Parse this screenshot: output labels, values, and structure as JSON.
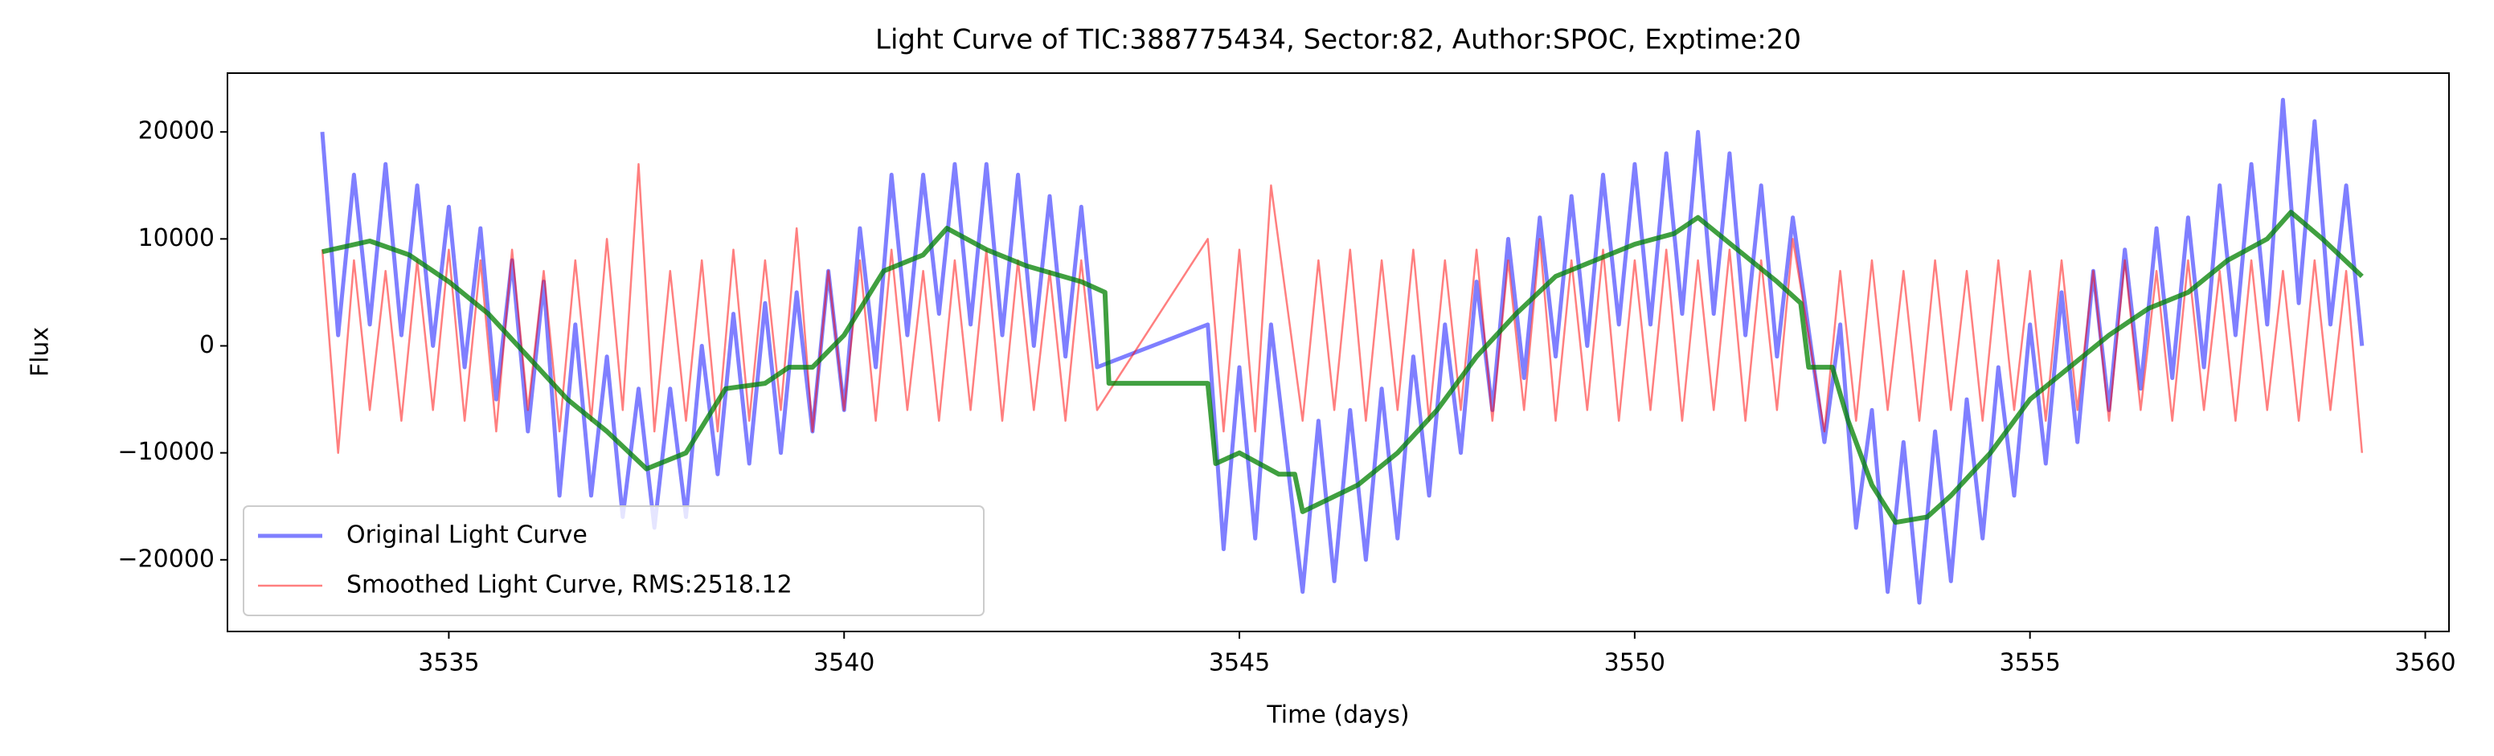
{
  "chart_data": {
    "type": "line",
    "title": "Light Curve of TIC:388775434, Sector:82, Author:SPOC, Exptime:20",
    "x_label": "Time (days)",
    "y_label": "Flux",
    "xlim": [
      3532.2,
      3560.3
    ],
    "xticks": [
      3535,
      3540,
      3545,
      3550,
      3555,
      3560
    ],
    "ylim": [
      -26700,
      25500
    ],
    "yticks": [
      {
        "value": -20000,
        "label": "−20000"
      },
      {
        "value": -10000,
        "label": "−10000"
      },
      0,
      10000,
      20000
    ],
    "legend": "lower left",
    "series": [
      {
        "name": "Original Light Curve",
        "color": "#0000ff",
        "opacity": 0.5,
        "width": 5,
        "x": [
          3533.4,
          3533.6,
          3533.8,
          3534,
          3534.2,
          3534.4,
          3534.6,
          3534.8,
          3535,
          3535.2,
          3535.4,
          3535.6,
          3535.8,
          3536,
          3536.2,
          3536.4,
          3536.6,
          3536.8,
          3537,
          3537.2,
          3537.4,
          3537.6,
          3537.8,
          3538,
          3538.2,
          3538.4,
          3538.6,
          3538.8,
          3539,
          3539.2,
          3539.4,
          3539.6,
          3539.8,
          3540,
          3540.2,
          3540.4,
          3540.6,
          3540.8,
          3541,
          3541.2,
          3541.4,
          3541.6,
          3541.8,
          3542,
          3542.2,
          3542.4,
          3542.6,
          3542.8,
          3543,
          3543.2,
          3544.6,
          3544.8,
          3545,
          3545.2,
          3545.4,
          3545.8,
          3546,
          3546.2,
          3546.4,
          3546.6,
          3546.8,
          3547,
          3547.2,
          3547.4,
          3547.6,
          3547.8,
          3548,
          3548.2,
          3548.4,
          3548.6,
          3548.8,
          3549,
          3549.2,
          3549.4,
          3549.6,
          3549.8,
          3550,
          3550.2,
          3550.4,
          3550.6,
          3550.8,
          3551,
          3551.2,
          3551.4,
          3551.6,
          3551.8,
          3552,
          3552.4,
          3552.6,
          3552.8,
          3553,
          3553.2,
          3553.4,
          3553.6,
          3553.8,
          3554,
          3554.2,
          3554.4,
          3554.6,
          3554.8,
          3555,
          3555.2,
          3555.4,
          3555.6,
          3555.8,
          3556,
          3556.2,
          3556.4,
          3556.6,
          3556.8,
          3557,
          3557.2,
          3557.4,
          3557.6,
          3557.8,
          3558,
          3558.2,
          3558.4,
          3558.6,
          3558.8,
          3559,
          3559.2
        ],
        "values": [
          20000,
          1000,
          16000,
          2000,
          17000,
          1000,
          15000,
          0,
          13000,
          -2000,
          11000,
          -5000,
          8000,
          -8000,
          6000,
          -14000,
          2000,
          -14000,
          -1000,
          -16000,
          -4000,
          -17000,
          -4000,
          -16000,
          0,
          -12000,
          3000,
          -11000,
          4000,
          -10000,
          5000,
          -8000,
          7000,
          -6000,
          11000,
          -2000,
          16000,
          1000,
          16000,
          3000,
          17000,
          2000,
          17000,
          1000,
          16000,
          0,
          14000,
          -1000,
          13000,
          -2000,
          2000,
          -19000,
          -2000,
          -18000,
          2000,
          -23000,
          -7000,
          -22000,
          -6000,
          -20000,
          -4000,
          -18000,
          -1000,
          -14000,
          2000,
          -10000,
          6000,
          -6000,
          10000,
          -3000,
          12000,
          -1000,
          14000,
          0,
          16000,
          2000,
          17000,
          2000,
          18000,
          3000,
          20000,
          3000,
          18000,
          1000,
          15000,
          -1000,
          12000,
          -9000,
          2000,
          -17000,
          -6000,
          -23000,
          -9000,
          -24000,
          -8000,
          -22000,
          -5000,
          -18000,
          -2000,
          -14000,
          2000,
          -11000,
          5000,
          -9000,
          7000,
          -6000,
          9000,
          -4000,
          11000,
          -3000,
          12000,
          -2000,
          15000,
          1000,
          17000,
          2000,
          23000,
          4000,
          21000,
          2000,
          15000,
          0
        ]
      },
      {
        "name": "Smoothed Light Curve, RMS:2518.12",
        "color": "#ff0000",
        "opacity": 0.5,
        "width": 2.5,
        "x": [
          3533.4,
          3533.6,
          3533.8,
          3534,
          3534.2,
          3534.4,
          3534.6,
          3534.8,
          3535,
          3535.2,
          3535.4,
          3535.6,
          3535.8,
          3536,
          3536.2,
          3536.4,
          3536.6,
          3536.8,
          3537,
          3537.2,
          3537.4,
          3537.6,
          3537.8,
          3538,
          3538.2,
          3538.4,
          3538.6,
          3538.8,
          3539,
          3539.2,
          3539.4,
          3539.6,
          3539.8,
          3540,
          3540.2,
          3540.4,
          3540.6,
          3540.8,
          3541,
          3541.2,
          3541.4,
          3541.6,
          3541.8,
          3542,
          3542.2,
          3542.4,
          3542.6,
          3542.8,
          3543,
          3543.2,
          3544.6,
          3544.8,
          3545,
          3545.2,
          3545.4,
          3545.8,
          3546,
          3546.2,
          3546.4,
          3546.6,
          3546.8,
          3547,
          3547.2,
          3547.4,
          3547.6,
          3547.8,
          3548,
          3548.2,
          3548.4,
          3548.6,
          3548.8,
          3549,
          3549.2,
          3549.4,
          3549.6,
          3549.8,
          3550,
          3550.2,
          3550.4,
          3550.6,
          3550.8,
          3551,
          3551.2,
          3551.4,
          3551.6,
          3551.8,
          3552,
          3552.4,
          3552.6,
          3552.8,
          3553,
          3553.2,
          3553.4,
          3553.6,
          3553.8,
          3554,
          3554.2,
          3554.4,
          3554.6,
          3554.8,
          3555,
          3555.2,
          3555.4,
          3555.6,
          3555.8,
          3556,
          3556.2,
          3556.4,
          3556.6,
          3556.8,
          3557,
          3557.2,
          3557.4,
          3557.6,
          3557.8,
          3558,
          3558.2,
          3558.4,
          3558.6,
          3558.8,
          3559,
          3559.2
        ],
        "values": [
          9000,
          -10000,
          8000,
          -6000,
          7000,
          -7000,
          8000,
          -6000,
          9000,
          -7000,
          8000,
          -8000,
          9000,
          -6000,
          7000,
          -8000,
          8000,
          -7000,
          10000,
          -6000,
          17000,
          -8000,
          7000,
          -7000,
          8000,
          -8000,
          9000,
          -7000,
          8000,
          -6000,
          11000,
          -8000,
          7000,
          -6000,
          8000,
          -7000,
          9000,
          -6000,
          7000,
          -7000,
          8000,
          -6000,
          9000,
          -7000,
          8000,
          -6000,
          7000,
          -7000,
          8000,
          -6000,
          10000,
          -8000,
          9000,
          -8000,
          15000,
          -7000,
          8000,
          -6000,
          9000,
          -7000,
          8000,
          -6000,
          9000,
          -7000,
          8000,
          -6000,
          9000,
          -7000,
          8000,
          -6000,
          10000,
          -7000,
          8000,
          -6000,
          9000,
          -7000,
          8000,
          -6000,
          9000,
          -7000,
          8000,
          -6000,
          9000,
          -7000,
          8000,
          -6000,
          10000,
          -8000,
          7000,
          -7000,
          8000,
          -6000,
          7000,
          -7000,
          8000,
          -6000,
          7000,
          -7000,
          8000,
          -6000,
          7000,
          -7000,
          8000,
          -6000,
          7000,
          -7000,
          8000,
          -6000,
          7000,
          -7000,
          8000,
          -6000,
          7000,
          -7000,
          8000,
          -6000,
          7000,
          -7000,
          8000,
          -6000,
          7000,
          -10000
        ]
      },
      {
        "color": "#008000",
        "opacity": 0.75,
        "width": 6,
        "x": [
          3533.4,
          3534,
          3534.5,
          3535,
          3535.5,
          3536,
          3536.5,
          3537,
          3537.5,
          3538,
          3538.5,
          3539,
          3539.3,
          3539.6,
          3540,
          3540.5,
          3541,
          3541.3,
          3541.8,
          3542.3,
          3543,
          3543.3,
          3543.35,
          3544.6,
          3544.7,
          3545,
          3545.5,
          3545.7,
          3545.8,
          3546.5,
          3547,
          3547.5,
          3548,
          3548.5,
          3549,
          3549.5,
          3550,
          3550.5,
          3550.8,
          3551.3,
          3551.8,
          3552.1,
          3552.2,
          3552.5,
          3552.7,
          3553,
          3553.3,
          3553.7,
          3554,
          3554.5,
          3555,
          3555.5,
          3556,
          3556.5,
          3557,
          3557.5,
          3558,
          3558.3,
          3558.7,
          3559.2
        ],
        "values": [
          8800,
          9800,
          8500,
          6000,
          3000,
          -1000,
          -5000,
          -8000,
          -11500,
          -10000,
          -4000,
          -3500,
          -2000,
          -2000,
          1000,
          7000,
          8500,
          11000,
          9000,
          7500,
          6000,
          5000,
          -3500,
          -3500,
          -11000,
          -10000,
          -12000,
          -12000,
          -15500,
          -13000,
          -10000,
          -6000,
          -1000,
          3000,
          6500,
          8000,
          9500,
          10500,
          12000,
          9000,
          6000,
          4000,
          -2000,
          -2000,
          -7000,
          -13000,
          -16500,
          -16000,
          -14000,
          -10000,
          -5000,
          -2000,
          1000,
          3500,
          5000,
          8000,
          10000,
          12500,
          10000,
          6500
        ]
      }
    ]
  }
}
